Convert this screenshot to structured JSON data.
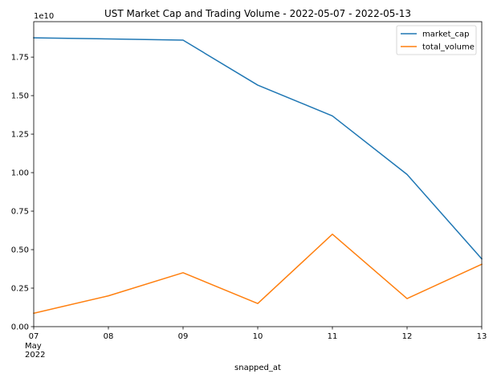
{
  "chart_data": {
    "type": "line",
    "title": "UST Market Cap and Trading Volume - 2022-05-07 - 2022-05-13",
    "xlabel": "snapped_at",
    "ylabel": "",
    "y_offset_label": "1e10",
    "x": [
      "2022-05-07",
      "2022-05-08",
      "2022-05-09",
      "2022-05-10",
      "2022-05-11",
      "2022-05-12",
      "2022-05-13"
    ],
    "x_tick_labels": [
      "07",
      "08",
      "09",
      "10",
      "11",
      "12",
      "13"
    ],
    "x_tick_sublabels": [
      "May",
      "2022"
    ],
    "xlim": [
      "2022-05-07",
      "2022-05-13"
    ],
    "ylim": [
      0,
      19800000000
    ],
    "y_ticks": [
      0,
      2500000000,
      5000000000,
      7500000000,
      10000000000,
      12500000000,
      15000000000,
      17500000000
    ],
    "y_tick_labels": [
      "0.00",
      "0.25",
      "0.50",
      "0.75",
      "1.00",
      "1.25",
      "1.50",
      "1.75"
    ],
    "series": [
      {
        "name": "market_cap",
        "color": "#1f77b4",
        "values": [
          18750000000,
          18680000000,
          18600000000,
          15680000000,
          13680000000,
          9880000000,
          4400000000
        ]
      },
      {
        "name": "total_volume",
        "color": "#ff7f0e",
        "values": [
          870000000,
          2000000000,
          3500000000,
          1500000000,
          6000000000,
          1820000000,
          4050000000
        ]
      }
    ],
    "grid": false,
    "legend_position": "top-right"
  }
}
